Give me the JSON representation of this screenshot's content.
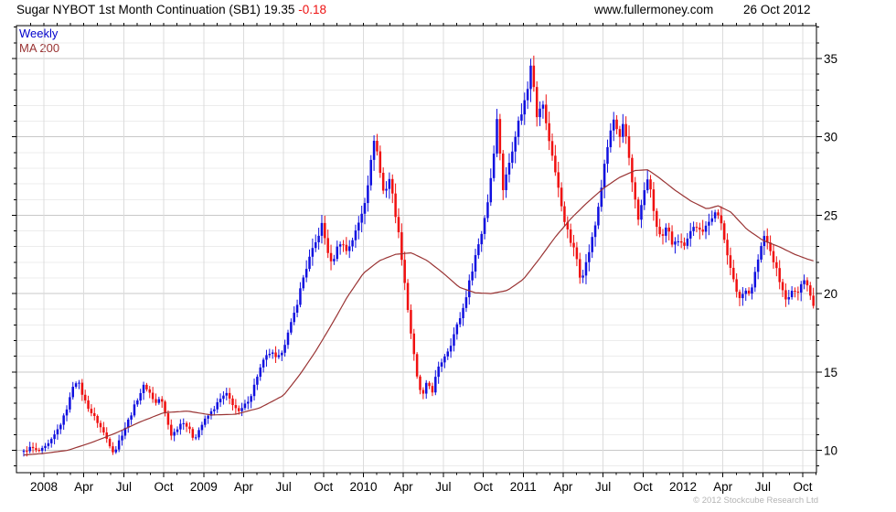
{
  "header": {
    "title": "Sugar NYBOT 1st Month Continuation (SB1)",
    "last_price": "19.35",
    "change": "-0.18",
    "website": "www.fullermoney.com",
    "date": "26 Oct 2012"
  },
  "legend": {
    "series1": "Weekly",
    "series2": "MA 200"
  },
  "footer": {
    "copyright": "© 2012 Stockcube Research Ltd"
  },
  "colors": {
    "up_bar": "#1010e0",
    "down_bar": "#f01010",
    "ma_line": "#993333",
    "grid_major": "#c8c8c8",
    "grid_minor": "#ececec",
    "grid_vertical": "#dcdcdc",
    "axis": "#000000",
    "tick_label": "#000000"
  },
  "chart_data": {
    "type": "candlestick",
    "title": "Sugar NYBOT 1st Month Continuation (SB1)",
    "frequency": "Weekly",
    "overlay": "MA 200",
    "last_price": 19.35,
    "change": -0.18,
    "grid": true,
    "legend_position": "top-left",
    "x_axis": {
      "range": [
        2007.83,
        2012.835
      ],
      "minor_tick_step_years": 0.083333,
      "labels": [
        {
          "t": 2008.0,
          "label": "2008"
        },
        {
          "t": 2008.25,
          "label": "Apr"
        },
        {
          "t": 2008.5,
          "label": "Jul"
        },
        {
          "t": 2008.75,
          "label": "Oct"
        },
        {
          "t": 2009.0,
          "label": "2009"
        },
        {
          "t": 2009.25,
          "label": "Apr"
        },
        {
          "t": 2009.5,
          "label": "Jul"
        },
        {
          "t": 2009.75,
          "label": "Oct"
        },
        {
          "t": 2010.0,
          "label": "2010"
        },
        {
          "t": 2010.25,
          "label": "Apr"
        },
        {
          "t": 2010.5,
          "label": "Jul"
        },
        {
          "t": 2010.75,
          "label": "Oct"
        },
        {
          "t": 2011.0,
          "label": "2011"
        },
        {
          "t": 2011.25,
          "label": "Apr"
        },
        {
          "t": 2011.5,
          "label": "Jul"
        },
        {
          "t": 2011.75,
          "label": "Oct"
        },
        {
          "t": 2012.0,
          "label": "2012"
        },
        {
          "t": 2012.25,
          "label": "Apr"
        },
        {
          "t": 2012.5,
          "label": "Jul"
        },
        {
          "t": 2012.75,
          "label": "Oct"
        }
      ]
    },
    "y_axis": {
      "range": [
        8.57,
        37.1
      ],
      "major_ticks": [
        10,
        15,
        20,
        25,
        30,
        35
      ],
      "minor_step": 1,
      "side": "right"
    },
    "series": [
      {
        "name": "Weekly",
        "type": "candlestick",
        "week_step": 0.019231,
        "start": 2007.874,
        "end": 2012.818,
        "close_path_anchors": [
          [
            2007.874,
            9.9
          ],
          [
            2007.92,
            10.2
          ],
          [
            2007.96,
            9.9
          ],
          [
            2008.0,
            10.1
          ],
          [
            2008.04,
            10.5
          ],
          [
            2008.08,
            11.2
          ],
          [
            2008.12,
            12.0
          ],
          [
            2008.16,
            13.2
          ],
          [
            2008.19,
            14.5
          ],
          [
            2008.22,
            14.2
          ],
          [
            2008.25,
            13.3
          ],
          [
            2008.29,
            12.5
          ],
          [
            2008.33,
            11.9
          ],
          [
            2008.37,
            11.2
          ],
          [
            2008.41,
            10.4
          ],
          [
            2008.44,
            9.8
          ],
          [
            2008.47,
            10.6
          ],
          [
            2008.51,
            11.5
          ],
          [
            2008.55,
            12.4
          ],
          [
            2008.59,
            13.4
          ],
          [
            2008.63,
            14.2
          ],
          [
            2008.66,
            13.7
          ],
          [
            2008.7,
            13.0
          ],
          [
            2008.73,
            13.4
          ],
          [
            2008.77,
            11.9
          ],
          [
            2008.8,
            10.9
          ],
          [
            2008.84,
            11.5
          ],
          [
            2008.87,
            11.9
          ],
          [
            2008.91,
            11.3
          ],
          [
            2008.94,
            10.7
          ],
          [
            2008.98,
            11.5
          ],
          [
            2009.02,
            12.1
          ],
          [
            2009.06,
            12.6
          ],
          [
            2009.1,
            13.2
          ],
          [
            2009.14,
            13.6
          ],
          [
            2009.18,
            13.0
          ],
          [
            2009.22,
            12.4
          ],
          [
            2009.26,
            12.9
          ],
          [
            2009.3,
            13.6
          ],
          [
            2009.34,
            14.9
          ],
          [
            2009.38,
            15.8
          ],
          [
            2009.42,
            16.3
          ],
          [
            2009.46,
            15.7
          ],
          [
            2009.5,
            16.6
          ],
          [
            2009.54,
            17.8
          ],
          [
            2009.58,
            19.2
          ],
          [
            2009.62,
            20.9
          ],
          [
            2009.66,
            22.2
          ],
          [
            2009.7,
            23.2
          ],
          [
            2009.74,
            24.4
          ],
          [
            2009.77,
            23.0
          ],
          [
            2009.8,
            21.8
          ],
          [
            2009.83,
            22.8
          ],
          [
            2009.86,
            23.4
          ],
          [
            2009.89,
            22.7
          ],
          [
            2009.92,
            23.2
          ],
          [
            2009.95,
            23.9
          ],
          [
            2009.98,
            24.8
          ],
          [
            2010.01,
            26.0
          ],
          [
            2010.04,
            27.8
          ],
          [
            2010.07,
            30.2
          ],
          [
            2010.1,
            28.0
          ],
          [
            2010.13,
            26.2
          ],
          [
            2010.16,
            27.5
          ],
          [
            2010.19,
            25.8
          ],
          [
            2010.22,
            23.8
          ],
          [
            2010.25,
            21.5
          ],
          [
            2010.28,
            18.8
          ],
          [
            2010.31,
            16.5
          ],
          [
            2010.34,
            14.3
          ],
          [
            2010.37,
            13.4
          ],
          [
            2010.4,
            14.4
          ],
          [
            2010.43,
            13.7
          ],
          [
            2010.46,
            15.0
          ],
          [
            2010.5,
            15.9
          ],
          [
            2010.54,
            16.6
          ],
          [
            2010.58,
            17.8
          ],
          [
            2010.62,
            18.9
          ],
          [
            2010.66,
            20.6
          ],
          [
            2010.7,
            22.4
          ],
          [
            2010.74,
            23.9
          ],
          [
            2010.78,
            26.0
          ],
          [
            2010.81,
            28.5
          ],
          [
            2010.84,
            31.5
          ],
          [
            2010.87,
            26.5
          ],
          [
            2010.9,
            27.8
          ],
          [
            2010.93,
            29.2
          ],
          [
            2010.96,
            30.6
          ],
          [
            2011.0,
            31.9
          ],
          [
            2011.03,
            33.2
          ],
          [
            2011.05,
            35.0
          ],
          [
            2011.06,
            34.0
          ],
          [
            2011.09,
            31.0
          ],
          [
            2011.12,
            32.4
          ],
          [
            2011.15,
            30.3
          ],
          [
            2011.18,
            29.0
          ],
          [
            2011.21,
            27.2
          ],
          [
            2011.24,
            25.6
          ],
          [
            2011.27,
            24.2
          ],
          [
            2011.3,
            23.2
          ],
          [
            2011.33,
            22.5
          ],
          [
            2011.36,
            20.9
          ],
          [
            2011.39,
            21.8
          ],
          [
            2011.42,
            23.0
          ],
          [
            2011.45,
            24.3
          ],
          [
            2011.48,
            26.2
          ],
          [
            2011.51,
            28.2
          ],
          [
            2011.54,
            30.1
          ],
          [
            2011.57,
            31.2
          ],
          [
            2011.6,
            29.6
          ],
          [
            2011.63,
            30.9
          ],
          [
            2011.66,
            28.9
          ],
          [
            2011.69,
            26.6
          ],
          [
            2011.72,
            24.7
          ],
          [
            2011.75,
            26.1
          ],
          [
            2011.78,
            27.5
          ],
          [
            2011.81,
            25.7
          ],
          [
            2011.84,
            24.0
          ],
          [
            2011.87,
            23.4
          ],
          [
            2011.9,
            24.3
          ],
          [
            2011.93,
            23.2
          ],
          [
            2011.96,
            23.6
          ],
          [
            2012.0,
            23.0
          ],
          [
            2012.04,
            23.9
          ],
          [
            2012.08,
            24.4
          ],
          [
            2012.12,
            23.7
          ],
          [
            2012.16,
            24.7
          ],
          [
            2012.2,
            25.2
          ],
          [
            2012.24,
            24.5
          ],
          [
            2012.27,
            23.0
          ],
          [
            2012.3,
            21.4
          ],
          [
            2012.33,
            20.3
          ],
          [
            2012.36,
            19.6
          ],
          [
            2012.39,
            20.4
          ],
          [
            2012.42,
            19.9
          ],
          [
            2012.45,
            21.3
          ],
          [
            2012.48,
            22.6
          ],
          [
            2012.51,
            23.7
          ],
          [
            2012.54,
            22.9
          ],
          [
            2012.57,
            22.0
          ],
          [
            2012.6,
            21.0
          ],
          [
            2012.63,
            19.9
          ],
          [
            2012.66,
            19.6
          ],
          [
            2012.69,
            20.3
          ],
          [
            2012.72,
            19.9
          ],
          [
            2012.75,
            21.2
          ],
          [
            2012.78,
            20.5
          ],
          [
            2012.81,
            19.35
          ]
        ]
      },
      {
        "name": "MA 200",
        "type": "line",
        "anchors": [
          [
            2007.874,
            9.7
          ],
          [
            2008.0,
            9.8
          ],
          [
            2008.15,
            10.0
          ],
          [
            2008.3,
            10.5
          ],
          [
            2008.45,
            11.1
          ],
          [
            2008.6,
            11.8
          ],
          [
            2008.75,
            12.4
          ],
          [
            2008.9,
            12.5
          ],
          [
            2009.05,
            12.25
          ],
          [
            2009.2,
            12.3
          ],
          [
            2009.35,
            12.7
          ],
          [
            2009.5,
            13.5
          ],
          [
            2009.6,
            14.8
          ],
          [
            2009.7,
            16.3
          ],
          [
            2009.8,
            18.0
          ],
          [
            2009.9,
            19.8
          ],
          [
            2010.0,
            21.3
          ],
          [
            2010.1,
            22.1
          ],
          [
            2010.2,
            22.5
          ],
          [
            2010.3,
            22.6
          ],
          [
            2010.4,
            22.1
          ],
          [
            2010.5,
            21.3
          ],
          [
            2010.6,
            20.4
          ],
          [
            2010.7,
            20.05
          ],
          [
            2010.8,
            20.0
          ],
          [
            2010.9,
            20.2
          ],
          [
            2011.0,
            20.9
          ],
          [
            2011.1,
            22.2
          ],
          [
            2011.2,
            23.6
          ],
          [
            2011.3,
            24.8
          ],
          [
            2011.4,
            25.8
          ],
          [
            2011.5,
            26.7
          ],
          [
            2011.6,
            27.4
          ],
          [
            2011.7,
            27.85
          ],
          [
            2011.78,
            27.9
          ],
          [
            2011.85,
            27.4
          ],
          [
            2011.95,
            26.6
          ],
          [
            2012.05,
            25.9
          ],
          [
            2012.15,
            25.4
          ],
          [
            2012.22,
            25.6
          ],
          [
            2012.3,
            25.2
          ],
          [
            2012.4,
            24.1
          ],
          [
            2012.5,
            23.4
          ],
          [
            2012.6,
            23.0
          ],
          [
            2012.7,
            22.5
          ],
          [
            2012.78,
            22.2
          ],
          [
            2012.83,
            22.05
          ]
        ]
      }
    ]
  }
}
